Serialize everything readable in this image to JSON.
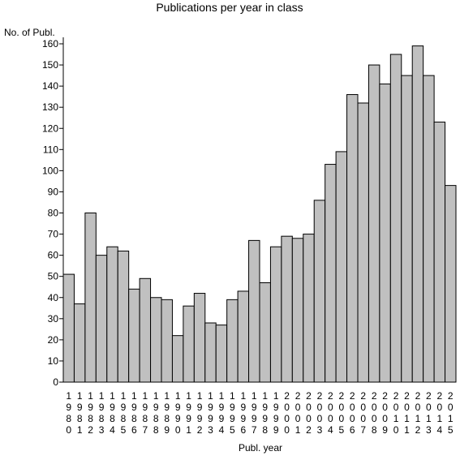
{
  "chart_data": {
    "type": "bar",
    "title": "Publications per year in class",
    "ylabel": "No. of Publ.",
    "xlabel": "Publ. year",
    "ylim": [
      0,
      160
    ],
    "yticks": [
      0,
      10,
      20,
      30,
      40,
      50,
      60,
      70,
      80,
      90,
      100,
      110,
      120,
      130,
      140,
      150,
      160
    ],
    "bar_color": "#c0c0c0",
    "edge_color": "#000000",
    "categories": [
      "1980",
      "1981",
      "1982",
      "1983",
      "1984",
      "1985",
      "1986",
      "1987",
      "1988",
      "1989",
      "1990",
      "1991",
      "1992",
      "1993",
      "1994",
      "1995",
      "1996",
      "1997",
      "1998",
      "1999",
      "2000",
      "2001",
      "2002",
      "2003",
      "2004",
      "2005",
      "2006",
      "2007",
      "2008",
      "2009",
      "2010",
      "2011",
      "2012",
      "2013",
      "2014",
      "2015"
    ],
    "values": [
      51,
      37,
      80,
      60,
      64,
      62,
      44,
      49,
      40,
      39,
      22,
      36,
      42,
      28,
      27,
      39,
      43,
      67,
      47,
      64,
      69,
      68,
      70,
      86,
      103,
      109,
      136,
      132,
      150,
      141,
      155,
      145,
      159,
      145,
      123,
      93
    ]
  }
}
